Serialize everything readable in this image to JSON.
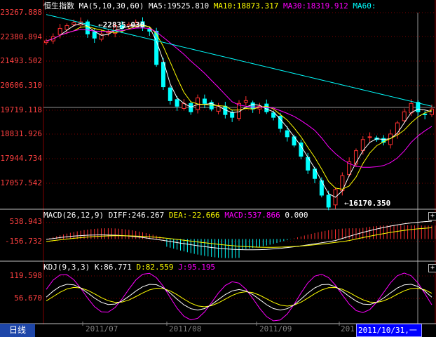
{
  "header": {
    "name": "恒生指数",
    "ma_label": "MA(5,10,30,60)",
    "ma5": "MA5:19525.810",
    "ma10": "MA10:18873.317",
    "ma30": "MA30:18319.912",
    "ma60": "MA60:"
  },
  "macd_header": {
    "params": "MACD(26,12,9)",
    "diff": "DIFF:246.267",
    "dea": "DEA:-22.666",
    "macd": "MACD:537.866",
    "extra": "0.000"
  },
  "kdj_header": {
    "params": "KDJ(9,3,3)",
    "k": "K:86.771",
    "d": "D:82.559",
    "j": "J:95.195"
  },
  "price_axis": [
    "23267.888",
    "22380.894",
    "21493.502",
    "20606.310",
    "19719.118",
    "18831.926",
    "17944.734",
    "17057.542"
  ],
  "macd_axis": [
    "538.943",
    "-156.732"
  ],
  "kdj_axis": [
    "119.598",
    "56.670"
  ],
  "x_axis": [
    "2011/07",
    "2011/08",
    "2011/09",
    "201"
  ],
  "annotations": {
    "high": "22835.030",
    "low": "16170.350"
  },
  "footer": {
    "period_tab": "日线",
    "cursor_date": "2011/10/31,一"
  },
  "colors": {
    "up": "#ff3030",
    "down": "#00ffff",
    "ma5": "#ffffff",
    "ma10": "#ffff00",
    "ma30": "#ff00ff",
    "ma60": "#00ffff",
    "grid": "#800000",
    "axis_text": "#ff4040"
  },
  "chart_data": {
    "type": "candlestick",
    "series_price": [
      22150,
      22300,
      22600,
      22700,
      22800,
      22835,
      22400,
      22250,
      22400,
      22500,
      22700,
      22600,
      22750,
      22800,
      22650,
      22500,
      21300,
      20500,
      20000,
      19800,
      19900,
      19600,
      20100,
      19900,
      19700,
      19800,
      19500,
      19400,
      19900,
      20000,
      19700,
      19800,
      19600,
      19400,
      19000,
      18700,
      18400,
      18000,
      17500,
      17200,
      16600,
      16170,
      16800,
      17300,
      17800,
      18200,
      18600,
      18700,
      18600,
      18500,
      18800,
      19200,
      19600,
      19900,
      19600,
      19500,
      19700
    ],
    "price_range": [
      16170,
      23268
    ],
    "macd_range": [
      -500,
      600
    ],
    "kdj_range": [
      0,
      120
    ]
  }
}
